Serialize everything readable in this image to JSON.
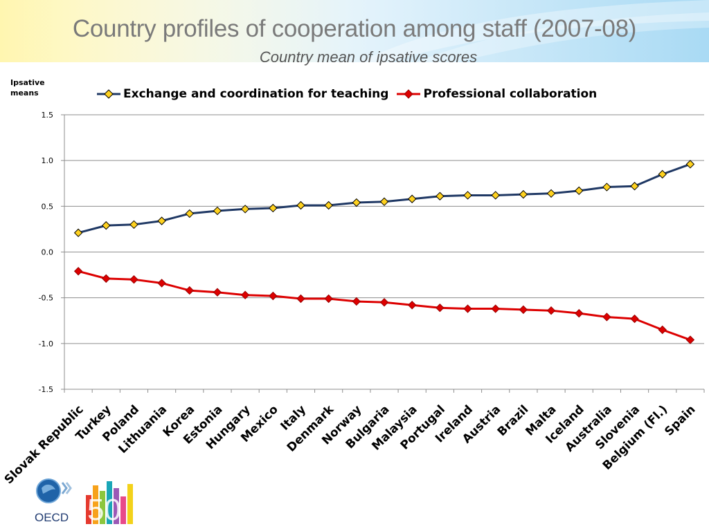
{
  "slide": {
    "title": "Country profiles of cooperation among staff (2007-08)",
    "subtitle": "Country mean of ipsative scores",
    "logo_text": "OECD",
    "logo_number": "50"
  },
  "chart_data": {
    "type": "line",
    "ylabel": "Ipsative means",
    "ylim": [
      -1.5,
      1.5
    ],
    "yticks": [
      "1.5",
      "1.0",
      "0.5",
      "0.0",
      "-0.5",
      "-1.0",
      "-1.5"
    ],
    "ytick_values": [
      1.5,
      1.0,
      0.5,
      0.0,
      -0.5,
      -1.0,
      -1.5
    ],
    "grid": true,
    "legend_position": "top",
    "categories": [
      "Slovak Republic",
      "Turkey",
      "Poland",
      "Lithuania",
      "Korea",
      "Estonia",
      "Hungary",
      "Mexico",
      "Italy",
      "Denmark",
      "Norway",
      "Bulgaria",
      "Malaysia",
      "Portugal",
      "Ireland",
      "Austria",
      "Brazil",
      "Malta",
      "Iceland",
      "Australia",
      "Slovenia",
      "Belgium (Fl.)",
      "Spain"
    ],
    "series": [
      {
        "name": "Exchange and coordination for teaching",
        "color": "#1f3864",
        "marker_color": "#ffd21f",
        "values": [
          0.21,
          0.29,
          0.3,
          0.34,
          0.42,
          0.45,
          0.47,
          0.48,
          0.51,
          0.51,
          0.54,
          0.55,
          0.58,
          0.61,
          0.62,
          0.62,
          0.63,
          0.64,
          0.67,
          0.71,
          0.72,
          0.85,
          0.96
        ]
      },
      {
        "name": "Professional collaboration",
        "color": "#dd0000",
        "marker_color": "#dd0000",
        "values": [
          -0.21,
          -0.29,
          -0.3,
          -0.34,
          -0.42,
          -0.44,
          -0.47,
          -0.48,
          -0.51,
          -0.51,
          -0.54,
          -0.55,
          -0.58,
          -0.61,
          -0.62,
          -0.62,
          -0.63,
          -0.64,
          -0.67,
          -0.71,
          -0.73,
          -0.85,
          -0.96
        ]
      }
    ]
  }
}
